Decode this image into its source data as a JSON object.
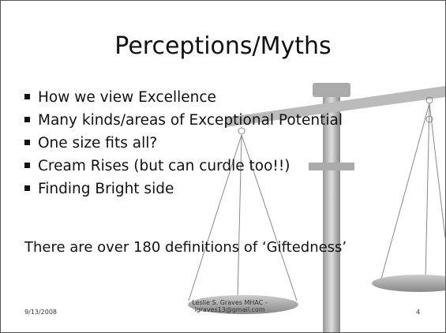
{
  "slide": {
    "title": "Perceptions/Myths",
    "bullets": [
      "How we view Excellence",
      "Many kinds/areas of Exceptional Potential",
      "One size fits all?",
      "Cream Rises (but can curdle too!!)",
      "Finding Bright side"
    ],
    "note": "There are over 180 definitions of ‘Giftedness’",
    "footer": {
      "date": "9/13/2008",
      "author": [
        "Leslie S. Graves MHAC -",
        "lgraves13@gmail.com"
      ],
      "page": "4"
    }
  }
}
